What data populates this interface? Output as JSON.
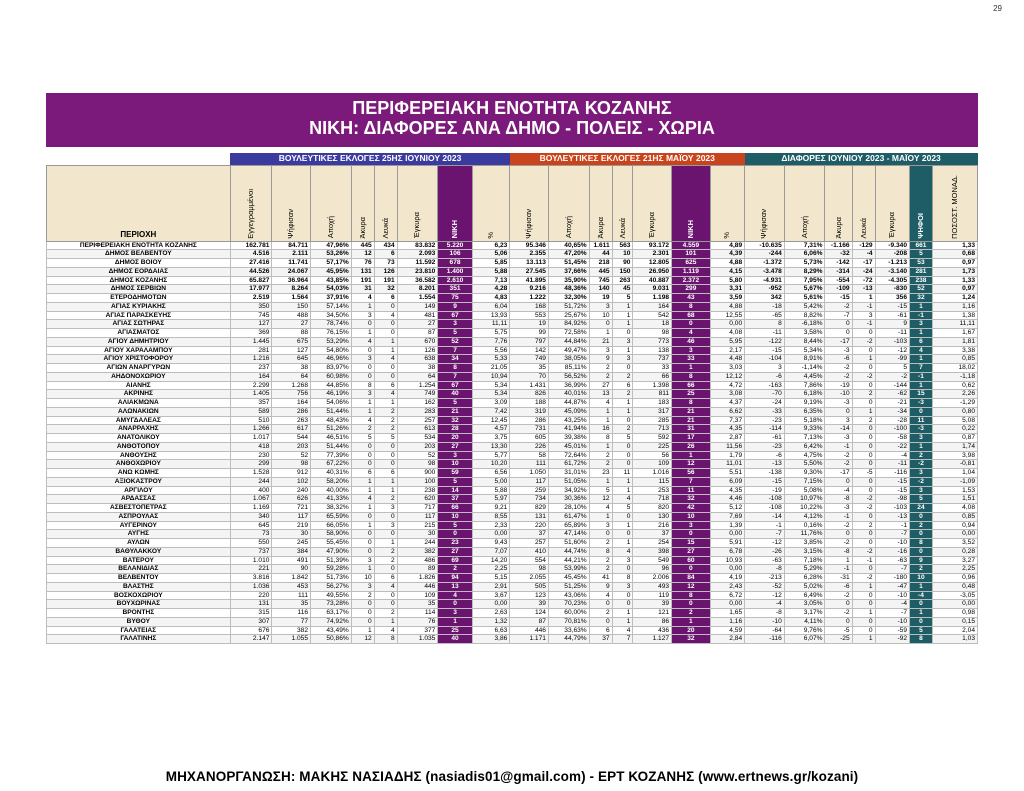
{
  "page_number": "29",
  "banner": {
    "title": "ΠΕΡΙΦΕΡΕΙΑΚΗ ΕΝΟΤΗΤΑ ΚΟΖΑΝΗΣ",
    "subtitle": "ΝΙΚΗ: ΔΙΑΦΟΡΕΣ ΑΝΑ ΔΗΜΟ - ΠΟΛΕΙΣ - ΧΩΡΙΑ"
  },
  "group_headers": {
    "june": "ΒΟΥΛΕΥΤΙΚΕΣ ΕΚΛΟΓΕΣ 25ΗΣ ΙΟΥΝΙΟΥ 2023",
    "may": "ΒΟΥΛΕΥΤΙΚΕΣ ΕΚΛΟΓΕΣ 21ΗΣ ΜΑΪΟΥ 2023",
    "diff": "ΔΙΑΦΟΡΕΣ ΙΟΥΝΙΟΥ 2023 - ΜΑΪΟΥ 2023"
  },
  "columns": {
    "area": "ΠΕΡΙΟΧΗ",
    "june": [
      "Εγγεγραμμένοι",
      "Ψήφισαν",
      "Αποχή",
      "Άκυρα",
      "Λευκά",
      "Έγκυρα",
      "ΝΙΚΗ",
      "%"
    ],
    "may": [
      "Ψήφισαν",
      "Αποχή",
      "Άκυρα",
      "Λευκά",
      "Έγκυρα",
      "ΝΙΚΗ",
      "%"
    ],
    "diff": [
      "Ψήφισαν",
      "Αποχή",
      "Άκυρα",
      "Λευκά",
      "Έγκυρα",
      "ΨΗΦΟΙ",
      "ΠΟΣΟΣΤ. ΜΟΝΑΔ."
    ]
  },
  "rows": [
    {
      "bold": true,
      "c": [
        "ΠΕΡΙΦΕΡΕΙΑΚΗ ΕΝΟΤΗΤΑ ΚΟΖΑΝΗΣ",
        "162.781",
        "84.711",
        "47,96%",
        "445",
        "434",
        "83.832",
        "5.220",
        "6,23",
        "95.346",
        "40,65%",
        "1.611",
        "563",
        "93.172",
        "4.559",
        "4,89",
        "-10.635",
        "7,31%",
        "-1.166",
        "-129",
        "-9.340",
        "661",
        "1,33"
      ]
    },
    {
      "bold": true,
      "c": [
        "ΔΗΜΟΣ ΒΕΛΒΕΝΤΟΥ",
        "4.516",
        "2.111",
        "53,26%",
        "12",
        "6",
        "2.093",
        "106",
        "5,06",
        "2.355",
        "47,20%",
        "44",
        "10",
        "2.301",
        "101",
        "4,39",
        "-244",
        "6,06%",
        "-32",
        "-4",
        "-208",
        "5",
        "0,68"
      ]
    },
    {
      "bold": true,
      "c": [
        "ΔΗΜΟΣ ΒΟΪΟΥ",
        "27.416",
        "11.741",
        "57,17%",
        "76",
        "73",
        "11.592",
        "678",
        "5,85",
        "13.113",
        "51,45%",
        "218",
        "90",
        "12.805",
        "625",
        "4,88",
        "-1.372",
        "5,73%",
        "-142",
        "-17",
        "-1.213",
        "53",
        "0,97"
      ]
    },
    {
      "bold": true,
      "c": [
        "ΔΗΜΟΣ ΕΟΡΔΑΙΑΣ",
        "44.526",
        "24.067",
        "45,95%",
        "131",
        "126",
        "23.810",
        "1.400",
        "5,88",
        "27.545",
        "37,66%",
        "445",
        "150",
        "26.950",
        "1.119",
        "4,15",
        "-3.478",
        "8,29%",
        "-314",
        "-24",
        "-3.140",
        "281",
        "1,73"
      ]
    },
    {
      "bold": true,
      "c": [
        "ΔΗΜΟΣ ΚΟΖΑΝΗΣ",
        "65.827",
        "36.964",
        "43,85%",
        "191",
        "191",
        "36.582",
        "2.610",
        "7,13",
        "41.895",
        "35,90%",
        "745",
        "263",
        "40.887",
        "2.372",
        "5,80",
        "-4.931",
        "7,95%",
        "-554",
        "-72",
        "-4.305",
        "238",
        "1,33"
      ]
    },
    {
      "bold": true,
      "c": [
        "ΔΗΜΟΣ ΣΕΡΒΙΩΝ",
        "17.977",
        "8.264",
        "54,03%",
        "31",
        "32",
        "8.201",
        "351",
        "4,28",
        "9.216",
        "48,36%",
        "140",
        "45",
        "9.031",
        "299",
        "3,31",
        "-952",
        "5,67%",
        "-109",
        "-13",
        "-830",
        "52",
        "0,97"
      ]
    },
    {
      "bold": true,
      "c": [
        "ΕΤΕΡΟΔΗΜΟΤΩΝ",
        "2.519",
        "1.564",
        "37,91%",
        "4",
        "6",
        "1.554",
        "75",
        "4,83",
        "1.222",
        "32,30%",
        "19",
        "5",
        "1.198",
        "43",
        "3,59",
        "342",
        "5,61%",
        "-15",
        "1",
        "356",
        "32",
        "1,24"
      ]
    },
    {
      "c": [
        "ΑΓΙΑΣ ΚΥΡΙΑΚΗΣ",
        "350",
        "150",
        "57,14%",
        "1",
        "0",
        "149",
        "9",
        "6,04",
        "168",
        "51,72%",
        "3",
        "1",
        "164",
        "8",
        "4,88",
        "-18",
        "5,42%",
        "-2",
        "-1",
        "-15",
        "1",
        "1,16"
      ]
    },
    {
      "c": [
        "ΑΓΙΑΣ ΠΑΡΑΣΚΕΥΗΣ",
        "745",
        "488",
        "34,50%",
        "3",
        "4",
        "481",
        "67",
        "13,93",
        "553",
        "25,67%",
        "10",
        "1",
        "542",
        "68",
        "12,55",
        "-65",
        "8,82%",
        "-7",
        "3",
        "-61",
        "-1",
        "1,38"
      ]
    },
    {
      "c": [
        "ΑΓΙΑΣ ΣΩΤΗΡΑΣ",
        "127",
        "27",
        "78,74%",
        "0",
        "0",
        "27",
        "3",
        "11,11",
        "19",
        "84,92%",
        "0",
        "1",
        "18",
        "0",
        "0,00",
        "8",
        "-6,18%",
        "0",
        "-1",
        "9",
        "3",
        "11,11"
      ]
    },
    {
      "c": [
        "ΑΓΙΑΣΜΑΤΟΣ",
        "369",
        "88",
        "76,15%",
        "1",
        "0",
        "87",
        "5",
        "5,75",
        "99",
        "72,58%",
        "1",
        "0",
        "98",
        "4",
        "4,08",
        "-11",
        "3,58%",
        "0",
        "0",
        "-11",
        "1",
        "1,67"
      ]
    },
    {
      "c": [
        "ΑΓΙΟΥ ΔΗΜΗΤΡΙΟΥ",
        "1.445",
        "675",
        "53,29%",
        "4",
        "1",
        "670",
        "52",
        "7,76",
        "797",
        "44,84%",
        "21",
        "3",
        "773",
        "46",
        "5,95",
        "-122",
        "8,44%",
        "-17",
        "-2",
        "-103",
        "6",
        "1,81"
      ]
    },
    {
      "c": [
        "ΑΓΙΟΥ ΧΑΡΑΛΑΜΠΟΥ",
        "281",
        "127",
        "54,80%",
        "0",
        "1",
        "126",
        "7",
        "5,56",
        "142",
        "49,47%",
        "3",
        "1",
        "138",
        "3",
        "2,17",
        "-15",
        "5,34%",
        "-3",
        "0",
        "-12",
        "4",
        "3,38"
      ]
    },
    {
      "c": [
        "ΑΓΙΟΥ ΧΡΙΣΤΟΦΟΡΟΥ",
        "1.216",
        "645",
        "46,96%",
        "3",
        "4",
        "638",
        "34",
        "5,33",
        "749",
        "38,05%",
        "9",
        "3",
        "737",
        "33",
        "4,48",
        "-104",
        "8,91%",
        "-6",
        "1",
        "-99",
        "1",
        "0,85"
      ]
    },
    {
      "c": [
        "ΑΓΙΩΝ ΑΝΑΡΓΥΡΩΝ",
        "237",
        "38",
        "83,97%",
        "0",
        "0",
        "38",
        "8",
        "21,05",
        "35",
        "85,11%",
        "2",
        "0",
        "33",
        "1",
        "3,03",
        "3",
        "-1,14%",
        "-2",
        "0",
        "5",
        "7",
        "18,02"
      ]
    },
    {
      "c": [
        "ΑΗΔΟΝΟΧΩΡΙΟΥ",
        "164",
        "64",
        "60,98%",
        "0",
        "0",
        "64",
        "7",
        "10,94",
        "70",
        "56,52%",
        "2",
        "2",
        "66",
        "8",
        "12,12",
        "-6",
        "4,45%",
        "-2",
        "-2",
        "-2",
        "-1",
        "-1,18"
      ]
    },
    {
      "c": [
        "ΑΙΑΝΗΣ",
        "2.299",
        "1.268",
        "44,85%",
        "8",
        "6",
        "1.254",
        "67",
        "5,34",
        "1.431",
        "36,99%",
        "27",
        "6",
        "1.398",
        "66",
        "4,72",
        "-163",
        "7,86%",
        "-19",
        "0",
        "-144",
        "1",
        "0,62"
      ]
    },
    {
      "c": [
        "ΑΚΡΙΝΗΣ",
        "1.405",
        "756",
        "46,19%",
        "3",
        "4",
        "749",
        "40",
        "5,34",
        "826",
        "40,01%",
        "13",
        "2",
        "811",
        "25",
        "3,08",
        "-70",
        "6,18%",
        "-10",
        "2",
        "-62",
        "15",
        "2,26"
      ]
    },
    {
      "c": [
        "ΑΛΙΑΚΜΩΝΑ",
        "357",
        "164",
        "54,06%",
        "1",
        "1",
        "162",
        "5",
        "3,09",
        "188",
        "44,87%",
        "4",
        "1",
        "183",
        "8",
        "4,37",
        "-24",
        "9,19%",
        "-3",
        "0",
        "-21",
        "-3",
        "-1,29"
      ]
    },
    {
      "c": [
        "ΑΛΩΝΑΚΙΩΝ",
        "589",
        "286",
        "51,44%",
        "1",
        "2",
        "283",
        "21",
        "7,42",
        "319",
        "45,09%",
        "1",
        "1",
        "317",
        "21",
        "6,62",
        "-33",
        "6,35%",
        "0",
        "1",
        "-34",
        "0",
        "0,80"
      ]
    },
    {
      "c": [
        "ΑΜΥΓΔΑΛΕΑΣ",
        "510",
        "263",
        "48,43%",
        "4",
        "2",
        "257",
        "32",
        "12,45",
        "286",
        "43,25%",
        "1",
        "0",
        "285",
        "21",
        "7,37",
        "-23",
        "5,18%",
        "3",
        "2",
        "-28",
        "11",
        "5,08"
      ]
    },
    {
      "c": [
        "ΑΝΑΡΡΑΧΗΣ",
        "1.266",
        "617",
        "51,26%",
        "2",
        "2",
        "613",
        "28",
        "4,57",
        "731",
        "41,94%",
        "16",
        "2",
        "713",
        "31",
        "4,35",
        "-114",
        "9,33%",
        "-14",
        "0",
        "-100",
        "-3",
        "0,22"
      ]
    },
    {
      "c": [
        "ΑΝΑΤΟΛΙΚΟΥ",
        "1.017",
        "544",
        "46,51%",
        "5",
        "5",
        "534",
        "20",
        "3,75",
        "605",
        "39,38%",
        "8",
        "5",
        "592",
        "17",
        "2,87",
        "-61",
        "7,13%",
        "-3",
        "0",
        "-58",
        "3",
        "0,87"
      ]
    },
    {
      "c": [
        "ΑΝΘΟΤΟΠΟΥ",
        "418",
        "203",
        "51,44%",
        "0",
        "0",
        "203",
        "27",
        "13,30",
        "226",
        "45,01%",
        "1",
        "0",
        "225",
        "26",
        "11,56",
        "-23",
        "6,42%",
        "-1",
        "0",
        "-22",
        "1",
        "1,74"
      ]
    },
    {
      "c": [
        "ΑΝΘΟΥΣΗΣ",
        "230",
        "52",
        "77,39%",
        "0",
        "0",
        "52",
        "3",
        "5,77",
        "58",
        "72,64%",
        "2",
        "0",
        "56",
        "1",
        "1,79",
        "-6",
        "4,75%",
        "-2",
        "0",
        "-4",
        "2",
        "3,98"
      ]
    },
    {
      "c": [
        "ΑΝΘΟΧΩΡΙΟΥ",
        "299",
        "98",
        "67,22%",
        "0",
        "0",
        "98",
        "10",
        "10,20",
        "111",
        "61,72%",
        "2",
        "0",
        "109",
        "12",
        "11,01",
        "-13",
        "5,50%",
        "-2",
        "0",
        "-11",
        "-2",
        "-0,81"
      ]
    },
    {
      "c": [
        "ΑΝΩ ΚΩΜΗΣ",
        "1.528",
        "912",
        "40,31%",
        "6",
        "6",
        "900",
        "59",
        "6,56",
        "1.050",
        "31,01%",
        "23",
        "11",
        "1.016",
        "56",
        "5,51",
        "-138",
        "9,30%",
        "-17",
        "-5",
        "-116",
        "3",
        "1,04"
      ]
    },
    {
      "c": [
        "ΑΞΙΟΚΑΣΤΡΟΥ",
        "244",
        "102",
        "58,20%",
        "1",
        "1",
        "100",
        "5",
        "5,00",
        "117",
        "51,05%",
        "1",
        "1",
        "115",
        "7",
        "6,09",
        "-15",
        "7,15%",
        "0",
        "0",
        "-15",
        "-2",
        "-1,09"
      ]
    },
    {
      "c": [
        "ΑΡΓΙΛΟΥ",
        "400",
        "240",
        "40,00%",
        "1",
        "1",
        "238",
        "14",
        "5,88",
        "259",
        "34,92%",
        "5",
        "1",
        "253",
        "11",
        "4,35",
        "-19",
        "5,08%",
        "-4",
        "0",
        "-15",
        "3",
        "1,53"
      ]
    },
    {
      "c": [
        "ΑΡΔΑΣΣΑΣ",
        "1.067",
        "626",
        "41,33%",
        "4",
        "2",
        "620",
        "37",
        "5,97",
        "734",
        "30,36%",
        "12",
        "4",
        "718",
        "32",
        "4,46",
        "-108",
        "10,97%",
        "-8",
        "-2",
        "-98",
        "5",
        "1,51"
      ]
    },
    {
      "c": [
        "ΑΣΒΕΣΤΟΠΕΤΡΑΣ",
        "1.169",
        "721",
        "38,32%",
        "1",
        "3",
        "717",
        "66",
        "9,21",
        "829",
        "28,10%",
        "4",
        "5",
        "820",
        "42",
        "5,12",
        "-108",
        "10,22%",
        "-3",
        "-2",
        "-103",
        "24",
        "4,08"
      ]
    },
    {
      "c": [
        "ΑΣΠΡΟΥΛΑΣ",
        "340",
        "117",
        "65,59%",
        "0",
        "0",
        "117",
        "10",
        "8,55",
        "131",
        "61,47%",
        "1",
        "0",
        "130",
        "10",
        "7,69",
        "-14",
        "4,12%",
        "-1",
        "0",
        "-13",
        "0",
        "0,85"
      ]
    },
    {
      "c": [
        "ΑΥΓΕΡΙΝΟΥ",
        "645",
        "219",
        "66,05%",
        "1",
        "3",
        "215",
        "5",
        "2,33",
        "220",
        "65,89%",
        "3",
        "1",
        "216",
        "3",
        "1,39",
        "-1",
        "0,16%",
        "-2",
        "2",
        "-1",
        "2",
        "0,94"
      ]
    },
    {
      "c": [
        "ΑΥΓΗΣ",
        "73",
        "30",
        "58,90%",
        "0",
        "0",
        "30",
        "0",
        "0,00",
        "37",
        "47,14%",
        "0",
        "0",
        "37",
        "0",
        "0,00",
        "-7",
        "11,76%",
        "0",
        "0",
        "-7",
        "0",
        "0,00"
      ]
    },
    {
      "c": [
        "ΑΥΛΩΝ",
        "550",
        "245",
        "55,45%",
        "0",
        "1",
        "244",
        "23",
        "9,43",
        "257",
        "51,60%",
        "2",
        "1",
        "254",
        "15",
        "5,91",
        "-12",
        "3,85%",
        "-2",
        "0",
        "-10",
        "8",
        "3,52"
      ]
    },
    {
      "c": [
        "ΒΑΘΥΛΑΚΚΟΥ",
        "737",
        "384",
        "47,90%",
        "0",
        "2",
        "382",
        "27",
        "7,07",
        "410",
        "44,74%",
        "8",
        "4",
        "398",
        "27",
        "6,78",
        "-26",
        "3,15%",
        "-8",
        "-2",
        "-16",
        "0",
        "0,28"
      ]
    },
    {
      "c": [
        "ΒΑΤΕΡΟΥ",
        "1.010",
        "491",
        "51,39%",
        "3",
        "2",
        "486",
        "69",
        "14,20",
        "554",
        "44,21%",
        "2",
        "3",
        "549",
        "60",
        "10,93",
        "-63",
        "7,18%",
        "1",
        "-1",
        "-63",
        "9",
        "3,27"
      ]
    },
    {
      "c": [
        "ΒΕΛΑΝΙΔΙΑΣ",
        "221",
        "90",
        "59,28%",
        "1",
        "0",
        "89",
        "2",
        "2,25",
        "98",
        "53,99%",
        "2",
        "0",
        "96",
        "0",
        "0,00",
        "-8",
        "5,29%",
        "-1",
        "0",
        "-7",
        "2",
        "2,25"
      ]
    },
    {
      "c": [
        "ΒΕΛΒΕΝΤΟΥ",
        "3.816",
        "1.842",
        "51,73%",
        "10",
        "6",
        "1.826",
        "94",
        "5,15",
        "2.055",
        "45,45%",
        "41",
        "8",
        "2.006",
        "84",
        "4,19",
        "-213",
        "6,28%",
        "-31",
        "-2",
        "-180",
        "10",
        "0,96"
      ]
    },
    {
      "c": [
        "ΒΛΑΣΤΗΣ",
        "1.036",
        "453",
        "56,27%",
        "3",
        "4",
        "446",
        "13",
        "2,91",
        "505",
        "51,25%",
        "9",
        "3",
        "493",
        "12",
        "2,43",
        "-52",
        "5,02%",
        "-6",
        "1",
        "-47",
        "1",
        "0,48"
      ]
    },
    {
      "c": [
        "ΒΟΣΚΟΧΩΡΙΟΥ",
        "220",
        "111",
        "49,55%",
        "2",
        "0",
        "109",
        "4",
        "3,67",
        "123",
        "43,06%",
        "4",
        "0",
        "119",
        "8",
        "6,72",
        "-12",
        "6,49%",
        "-2",
        "0",
        "-10",
        "-4",
        "-3,05"
      ]
    },
    {
      "c": [
        "ΒΟΥΧΩΡΙΝΑΣ",
        "131",
        "35",
        "73,28%",
        "0",
        "0",
        "35",
        "0",
        "0,00",
        "39",
        "70,23%",
        "0",
        "0",
        "39",
        "0",
        "0,00",
        "-4",
        "3,05%",
        "0",
        "0",
        "-4",
        "0",
        "0,00"
      ]
    },
    {
      "c": [
        "ΒΡΟΝΤΗΣ",
        "315",
        "116",
        "63,17%",
        "0",
        "2",
        "114",
        "3",
        "2,63",
        "124",
        "60,00%",
        "2",
        "1",
        "121",
        "2",
        "1,65",
        "-8",
        "3,17%",
        "-2",
        "1",
        "-7",
        "1",
        "0,98"
      ]
    },
    {
      "c": [
        "ΒΥΘΟΥ",
        "307",
        "77",
        "74,92%",
        "0",
        "1",
        "76",
        "1",
        "1,32",
        "87",
        "70,81%",
        "0",
        "1",
        "86",
        "1",
        "1,16",
        "-10",
        "4,11%",
        "0",
        "0",
        "-10",
        "0",
        "0,15"
      ]
    },
    {
      "c": [
        "ΓΑΛΑΤΕΙΑΣ",
        "676",
        "382",
        "43,49%",
        "1",
        "4",
        "377",
        "25",
        "6,63",
        "446",
        "33,63%",
        "6",
        "4",
        "436",
        "20",
        "4,59",
        "-64",
        "9,76%",
        "-5",
        "0",
        "-59",
        "5",
        "2,04"
      ]
    },
    {
      "c": [
        "ΓΑΛΑΤΙΝΗΣ",
        "2.147",
        "1.055",
        "50,86%",
        "12",
        "8",
        "1.035",
        "40",
        "3,86",
        "1.171",
        "44,79%",
        "37",
        "7",
        "1.127",
        "32",
        "2,84",
        "-116",
        "6,07%",
        "-25",
        "1",
        "-92",
        "8",
        "1,03"
      ]
    }
  ],
  "footer": "ΜΗΧΑΝΟΡΓΑΝΩΣΗ: ΜΑΚΗΣ ΝΑΣΙΑΔΗΣ (nasiadis01@gmail.com) - ΕΡΤ ΚΟΖΑΝΗΣ (www.ertnews.gr/kozani)"
}
